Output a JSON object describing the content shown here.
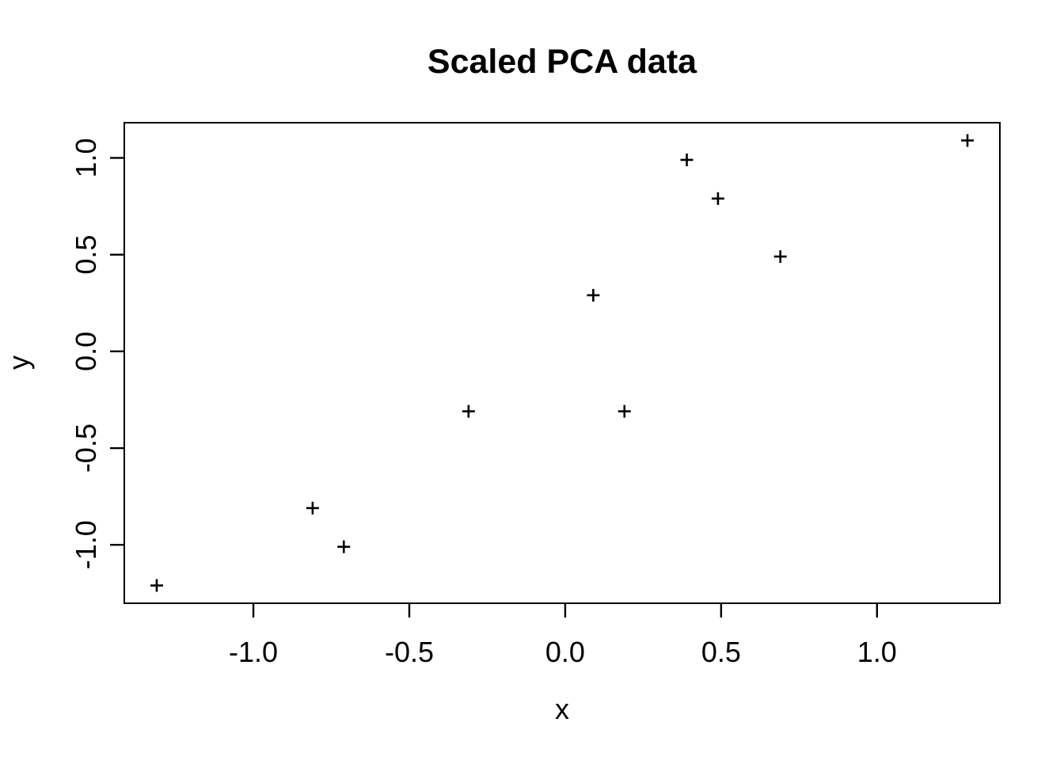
{
  "window": {
    "background_color": "#ffffff",
    "foreground_color": "#000000"
  },
  "chart_data": {
    "type": "scatter",
    "title": "Scaled PCA data",
    "xlabel": "x",
    "ylabel": "y",
    "marker": "plus",
    "marker_color": "#000000",
    "grid": false,
    "legend": null,
    "xlim": [
      -1.414,
      1.394
    ],
    "ylim": [
      -1.302,
      1.182
    ],
    "x_ticks": [
      -1.0,
      -0.5,
      0.0,
      0.5,
      1.0
    ],
    "x_tick_labels": [
      "-1.0",
      "-0.5",
      "0.0",
      "0.5",
      "1.0"
    ],
    "y_ticks": [
      -1.0,
      -0.5,
      0.0,
      0.5,
      1.0
    ],
    "y_tick_labels": [
      "-1.0",
      "-0.5",
      "0.0",
      "0.5",
      "1.0"
    ],
    "points": [
      {
        "x": 0.69,
        "y": 0.49
      },
      {
        "x": -1.31,
        "y": -1.21
      },
      {
        "x": 0.39,
        "y": 0.99
      },
      {
        "x": 0.09,
        "y": 0.29
      },
      {
        "x": 1.29,
        "y": 1.09
      },
      {
        "x": 0.49,
        "y": 0.79
      },
      {
        "x": 0.19,
        "y": -0.31
      },
      {
        "x": -0.81,
        "y": -0.81
      },
      {
        "x": -0.31,
        "y": -0.31
      },
      {
        "x": -0.71,
        "y": -1.01
      }
    ]
  }
}
